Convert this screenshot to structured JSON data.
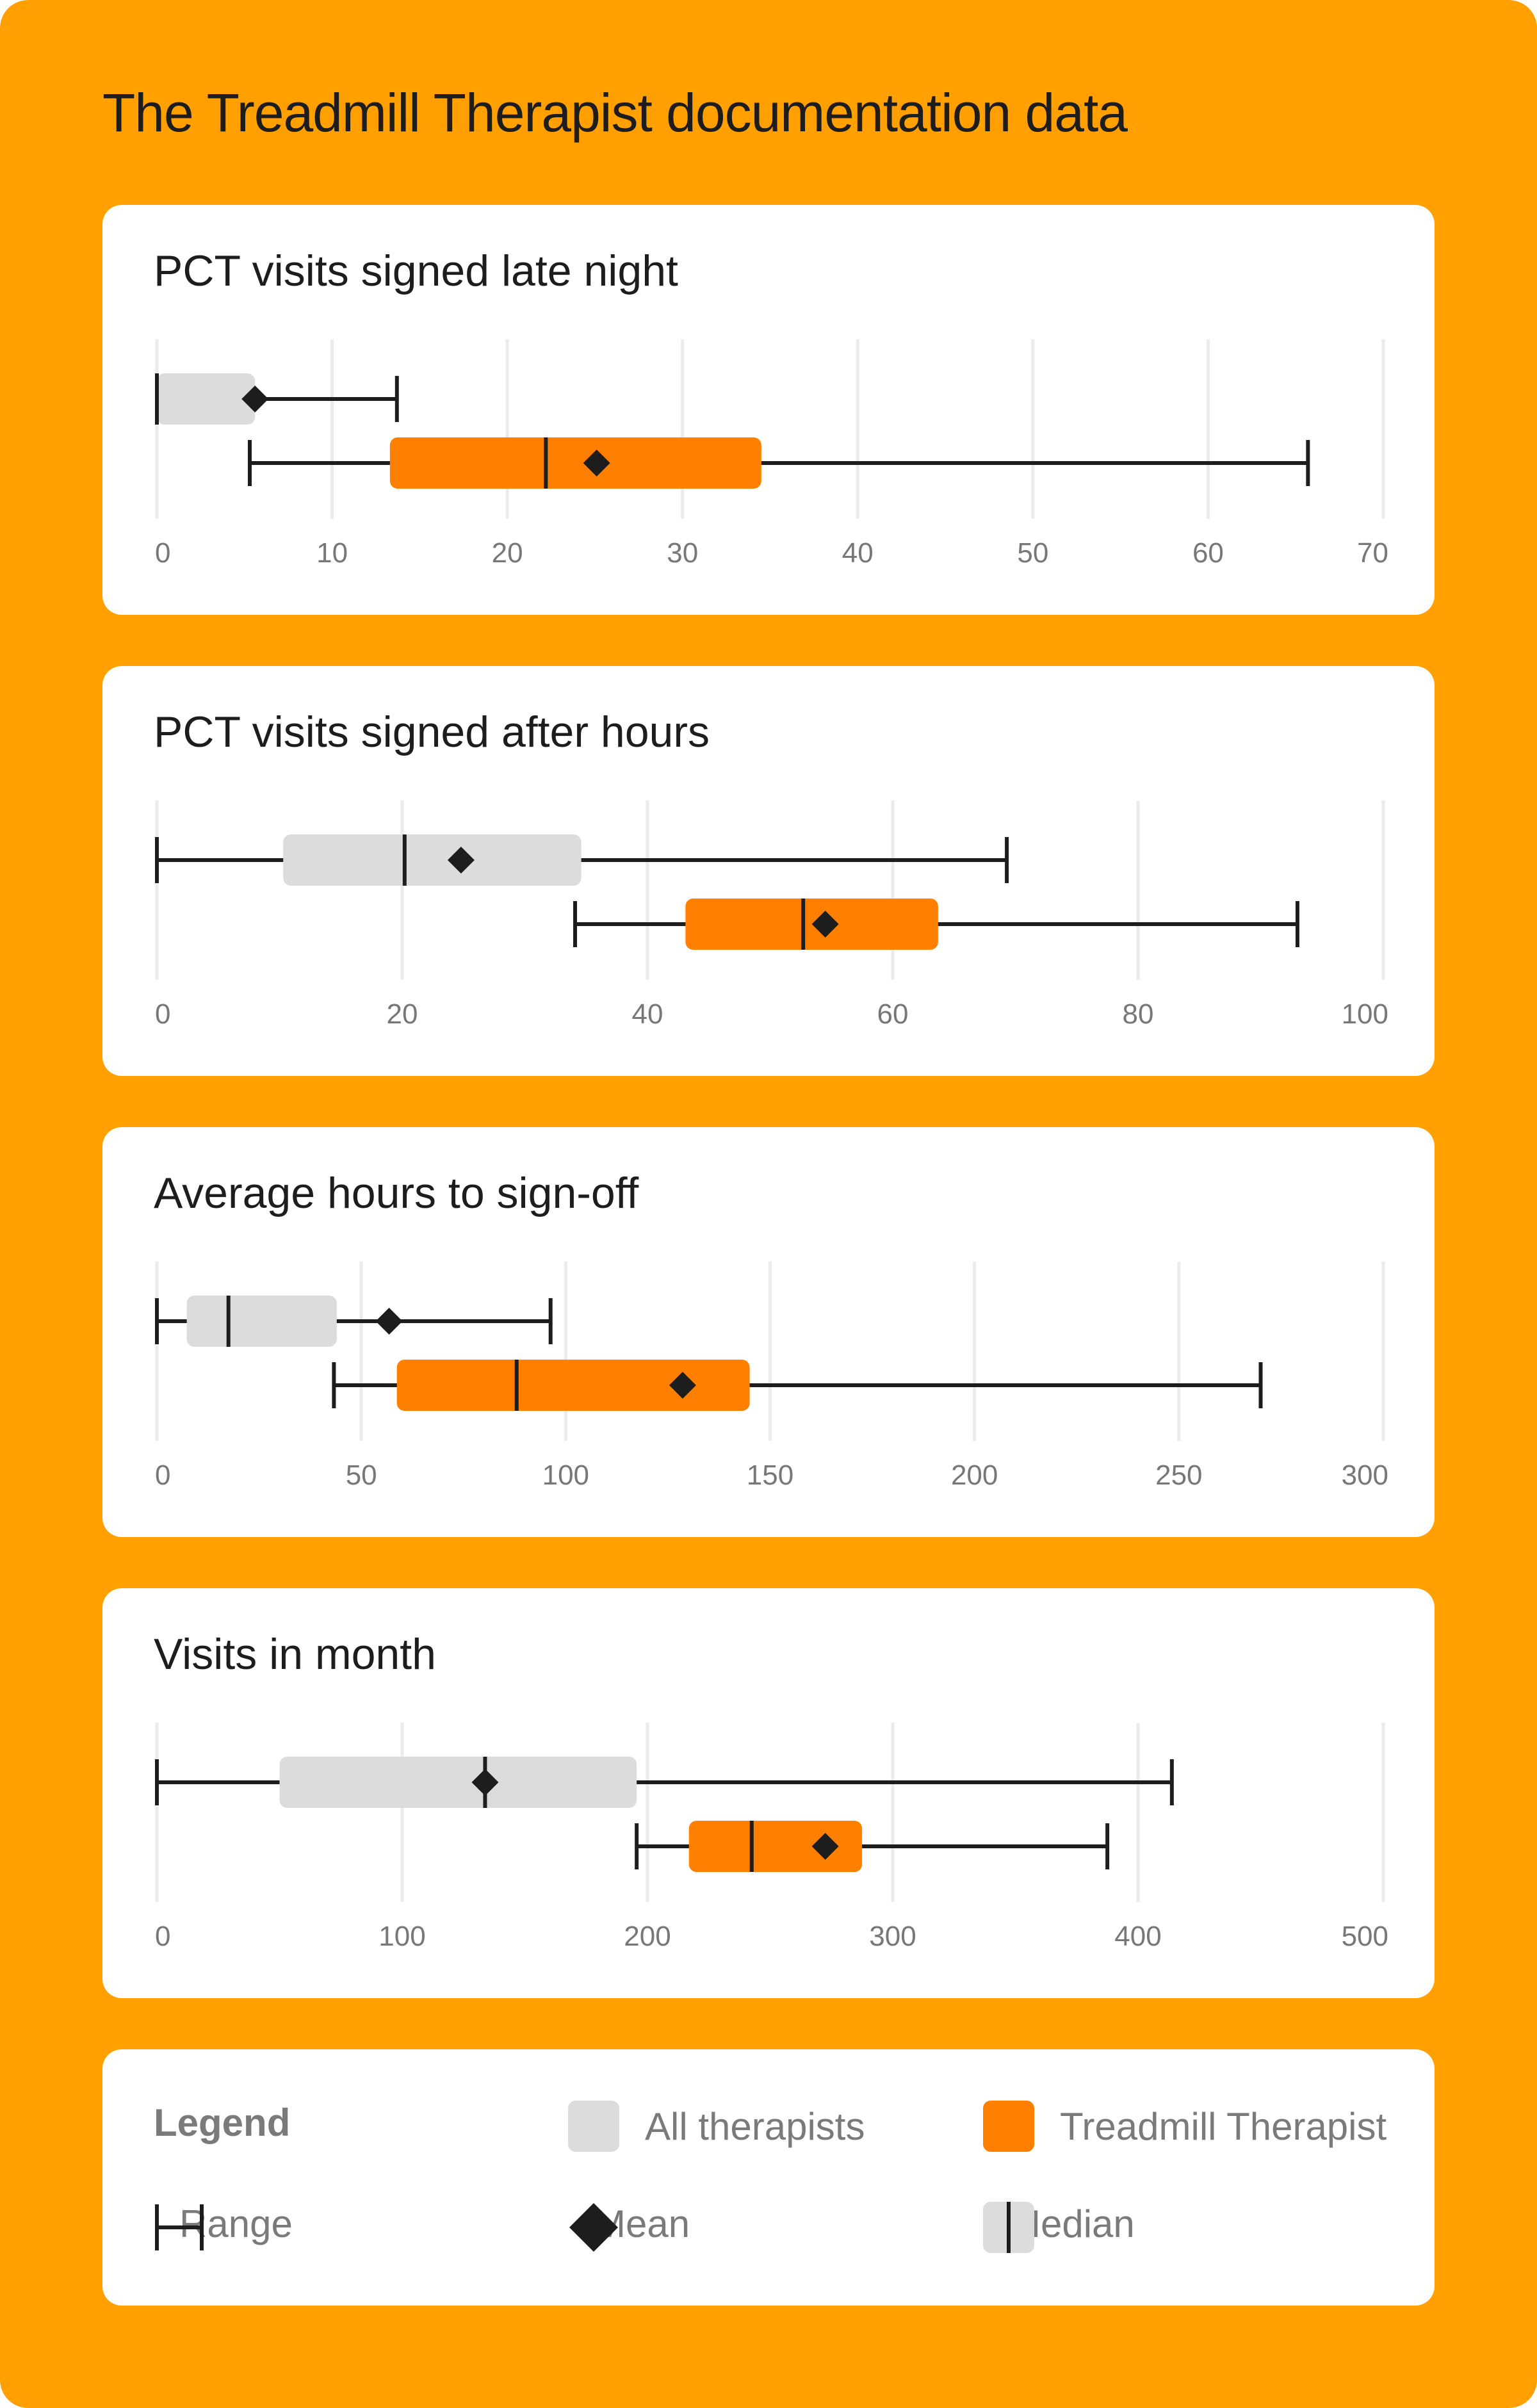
{
  "title": "The Treadmill Therapist documentation data",
  "colors": {
    "background": "#FFA000",
    "all_therapists": "#DCDCDC",
    "treadmill_therapist": "#FF8000",
    "ink": "#1d1d1d",
    "grid": "#EBEBEB",
    "tick": "#777777"
  },
  "chart_data": [
    {
      "type": "boxplot",
      "title": "PCT visits signed late night",
      "xlim": [
        0,
        70
      ],
      "ticks": [
        0,
        10,
        20,
        30,
        40,
        50,
        60,
        70
      ],
      "series": [
        {
          "name": "All therapists",
          "min": 0,
          "q1": 0,
          "median": 0,
          "q3": 5.6,
          "max": 13.7,
          "mean": 5.6
        },
        {
          "name": "Treadmill Therapist",
          "min": 5.3,
          "q1": 13.3,
          "median": 22.2,
          "q3": 34.5,
          "max": 65.7,
          "mean": 25.1
        }
      ]
    },
    {
      "type": "boxplot",
      "title": "PCT visits signed after hours",
      "xlim": [
        0,
        100
      ],
      "ticks": [
        0,
        20,
        40,
        60,
        80,
        100
      ],
      "series": [
        {
          "name": "All therapists",
          "min": 0,
          "q1": 10.3,
          "median": 20.2,
          "q3": 34.6,
          "max": 69.3,
          "mean": 24.8
        },
        {
          "name": "Treadmill Therapist",
          "min": 34.1,
          "q1": 43.1,
          "median": 52.7,
          "q3": 63.7,
          "max": 93.0,
          "mean": 54.5
        }
      ]
    },
    {
      "type": "boxplot",
      "title": "Average hours to sign-off",
      "xlim": [
        0,
        300
      ],
      "ticks": [
        0,
        50,
        100,
        150,
        200,
        250,
        300
      ],
      "series": [
        {
          "name": "All therapists",
          "min": 0,
          "q1": 7.3,
          "median": 17.5,
          "q3": 44.0,
          "max": 96.3,
          "mean": 56.8
        },
        {
          "name": "Treadmill Therapist",
          "min": 43.3,
          "q1": 58.7,
          "median": 88.0,
          "q3": 145.0,
          "max": 270.0,
          "mean": 128.6
        }
      ]
    },
    {
      "type": "boxplot",
      "title": "Visits in month",
      "xlim": [
        0,
        500
      ],
      "ticks": [
        0,
        100,
        200,
        300,
        400,
        500
      ],
      "series": [
        {
          "name": "All therapists",
          "min": 0,
          "q1": 50,
          "median": 133.8,
          "q3": 195.6,
          "max": 413.8,
          "mean": 133.8
        },
        {
          "name": "Treadmill Therapist",
          "min": 195.6,
          "q1": 216.9,
          "median": 242.5,
          "q3": 287.5,
          "max": 387.5,
          "mean": 272.5
        }
      ]
    }
  ],
  "legend": {
    "title": "Legend",
    "all_therapists": "All therapists",
    "treadmill_therapist": "Treadmill Therapist",
    "range": "Range",
    "mean": "Mean",
    "median": "Median"
  }
}
